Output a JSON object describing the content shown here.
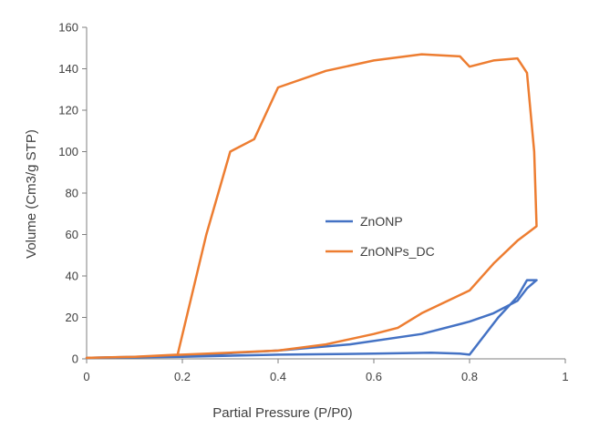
{
  "chart_data": {
    "type": "line",
    "title": "",
    "xlabel": "Partial Pressure  (P/P0)",
    "ylabel": "Volume (Cm3/g STP)",
    "xlim": [
      0,
      1
    ],
    "ylim": [
      0,
      160
    ],
    "xticks": [
      0,
      0.2,
      0.4,
      0.6,
      0.8,
      1
    ],
    "xtick_labels": [
      "0",
      "0.2",
      "0.4",
      "0.6",
      "0.8",
      "1"
    ],
    "yticks": [
      0,
      20,
      40,
      60,
      80,
      100,
      120,
      140,
      160
    ],
    "ytick_labels": [
      "0",
      "20",
      "40",
      "60",
      "80",
      "100",
      "120",
      "140",
      "160"
    ],
    "grid": false,
    "legend_position": "center-right",
    "series": [
      {
        "name": "ZnONP",
        "color": "#4472C4",
        "x": [
          0.0,
          0.2,
          0.4,
          0.55,
          0.7,
          0.8,
          0.85,
          0.9,
          0.92,
          0.94,
          0.92,
          0.9,
          0.86,
          0.82,
          0.8,
          0.78,
          0.72,
          0.6,
          0.4,
          0.2,
          0.0
        ],
        "y": [
          0.5,
          1.5,
          4,
          7,
          12,
          18,
          22,
          28,
          34,
          38,
          38,
          30,
          20,
          8,
          2,
          2.5,
          3,
          2.5,
          2,
          1,
          0.5
        ]
      },
      {
        "name": "ZnONPs_DC",
        "color": "#ED7D31",
        "x": [
          0.0,
          0.1,
          0.19,
          0.25,
          0.3,
          0.35,
          0.4,
          0.5,
          0.6,
          0.7,
          0.78,
          0.8,
          0.85,
          0.9,
          0.92,
          0.935,
          0.94,
          0.9,
          0.85,
          0.8,
          0.7,
          0.65,
          0.6,
          0.5,
          0.4,
          0.3,
          0.2,
          0.1,
          0.0
        ],
        "y": [
          0.5,
          1,
          2,
          60,
          100,
          106,
          131,
          139,
          144,
          147,
          146,
          141,
          144,
          145,
          138,
          100,
          64,
          57,
          46,
          33,
          22,
          15,
          12,
          7,
          4,
          3,
          2,
          1,
          0.5
        ]
      }
    ]
  }
}
